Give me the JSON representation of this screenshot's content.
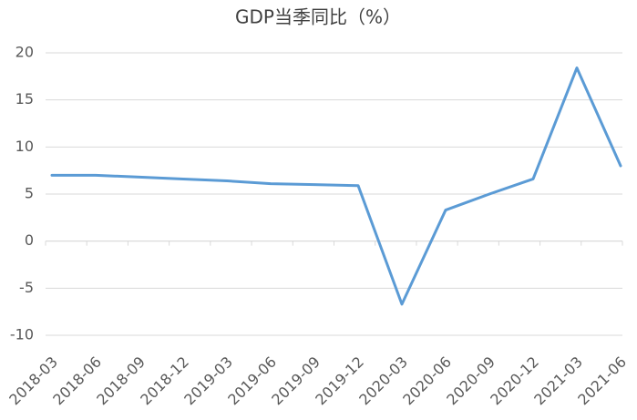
{
  "chart_data": {
    "type": "line",
    "title": "GDP当季同比（%）",
    "categories": [
      "2018-03",
      "2018-06",
      "2018-09",
      "2018-12",
      "2019-03",
      "2019-06",
      "2019-09",
      "2019-12",
      "2020-03",
      "2020-06",
      "2020-09",
      "2020-12",
      "2021-03",
      "2021-06"
    ],
    "series": [
      {
        "name": "GDP当季同比",
        "color": "#5b9bd5",
        "values": [
          7.0,
          7.0,
          6.8,
          6.6,
          6.4,
          6.1,
          6.0,
          5.9,
          -6.7,
          3.3,
          5.0,
          6.6,
          18.4,
          8.0
        ]
      }
    ],
    "ylim": [
      -10,
      20
    ],
    "yticks": [
      -10,
      -5,
      0,
      5,
      10,
      15,
      20
    ],
    "grid": true
  }
}
